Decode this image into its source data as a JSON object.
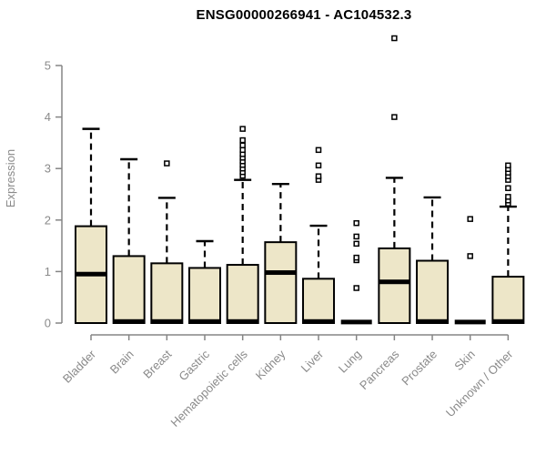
{
  "chart_data": {
    "type": "boxplot",
    "title": "ENSG00000266941 - AC104532.3",
    "ylabel": "Expression",
    "xlabel": "",
    "ylim": [
      0,
      5
    ],
    "yticks": [
      "0",
      "1",
      "2",
      "3",
      "4",
      "5"
    ],
    "grid": false,
    "legend": null,
    "categories": [
      "Bladder",
      "Brain",
      "Breast",
      "Gastric",
      "Hematopoietic cells",
      "Kidney",
      "Liver",
      "Lung",
      "Pancreas",
      "Prostate",
      "Skin",
      "Unknown / Other"
    ],
    "boxes": [
      {
        "label": "Bladder",
        "whisker_low": 0,
        "q1": 0,
        "median": 0.95,
        "q3": 1.88,
        "whisker_high": 3.77,
        "outliers": []
      },
      {
        "label": "Brain",
        "whisker_low": 0,
        "q1": 0,
        "median": 0.03,
        "q3": 1.3,
        "whisker_high": 3.18,
        "outliers": []
      },
      {
        "label": "Breast",
        "whisker_low": 0,
        "q1": 0,
        "median": 0.03,
        "q3": 1.16,
        "whisker_high": 2.43,
        "outliers": [
          3.1
        ]
      },
      {
        "label": "Gastric",
        "whisker_low": 0,
        "q1": 0,
        "median": 0.03,
        "q3": 1.07,
        "whisker_high": 1.59,
        "outliers": []
      },
      {
        "label": "Hematopoietic cells",
        "whisker_low": 0,
        "q1": 0,
        "median": 0.03,
        "q3": 1.13,
        "whisker_high": 2.78,
        "outliers": [
          2.86,
          2.93,
          3.0,
          3.07,
          3.14,
          3.21,
          3.28,
          3.36,
          3.45,
          3.55,
          3.77
        ]
      },
      {
        "label": "Kidney",
        "whisker_low": 0,
        "q1": 0,
        "median": 0.98,
        "q3": 1.57,
        "whisker_high": 2.7,
        "outliers": []
      },
      {
        "label": "Liver",
        "whisker_low": 0,
        "q1": 0,
        "median": 0.03,
        "q3": 0.86,
        "whisker_high": 1.89,
        "outliers": [
          2.78,
          2.85,
          3.06,
          3.36
        ]
      },
      {
        "label": "Lung",
        "whisker_low": 0,
        "q1": 0,
        "median": 0.02,
        "q3": 0.04,
        "whisker_high": 0.04,
        "outliers": [
          0.68,
          1.22,
          1.27,
          1.54,
          1.68,
          1.94
        ]
      },
      {
        "label": "Pancreas",
        "whisker_low": 0,
        "q1": 0,
        "median": 0.8,
        "q3": 1.45,
        "whisker_high": 2.82,
        "outliers": [
          4.0,
          5.53
        ]
      },
      {
        "label": "Prostate",
        "whisker_low": 0,
        "q1": 0,
        "median": 0.03,
        "q3": 1.21,
        "whisker_high": 2.44,
        "outliers": []
      },
      {
        "label": "Skin",
        "whisker_low": 0,
        "q1": 0,
        "median": 0.02,
        "q3": 0.04,
        "whisker_high": 0.04,
        "outliers": [
          1.3,
          2.02
        ]
      },
      {
        "label": "Unknown / Other",
        "whisker_low": 0,
        "q1": 0,
        "median": 0.03,
        "q3": 0.9,
        "whisker_high": 2.26,
        "outliers": [
          2.32,
          2.38,
          2.45,
          2.62,
          2.78,
          2.85,
          2.92,
          2.99,
          3.06
        ]
      }
    ],
    "colors": {
      "box_fill": "#EDE6C8",
      "box_stroke": "#000000",
      "median": "#000000",
      "whisker": "#000000",
      "outlier_stroke": "#000000",
      "axis": "#858585",
      "tick_label": "#8a8a8a",
      "title": "#000000"
    }
  }
}
